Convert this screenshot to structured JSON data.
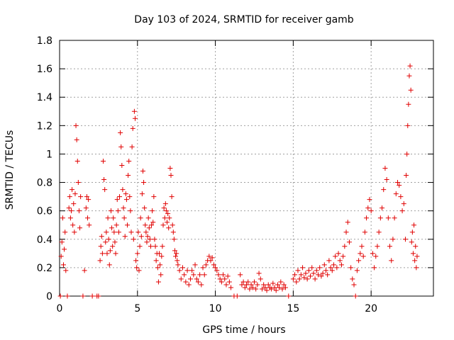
{
  "chart_data": {
    "type": "scatter",
    "title": "Day 103 of 2024, SRMTID for receiver gamb",
    "xlabel": "GPS time / hours",
    "ylabel": "SRMTID / TECUs",
    "xlim": [
      0,
      24
    ],
    "ylim": [
      0,
      1.8
    ],
    "grid": true,
    "marker": "+",
    "marker_color": "#e00000",
    "xticks": [
      0,
      5,
      10,
      15,
      20
    ],
    "yticks": [
      0,
      0.2,
      0.4,
      0.6,
      0.8,
      1.0,
      1.2,
      1.4,
      1.6,
      1.8
    ],
    "xtick_labels": [
      "0",
      "5",
      "10",
      "15",
      "20"
    ],
    "ytick_labels": [
      "0",
      "0.2",
      "0.4",
      "0.6",
      "0.8",
      "1",
      "1.2",
      "1.4",
      "1.6",
      "1.8"
    ],
    "series": [
      {
        "name": "SRMTID",
        "points": [
          [
            0.05,
            0.0
          ],
          [
            0.1,
            0.28
          ],
          [
            0.15,
            0.38
          ],
          [
            0.2,
            0.55
          ],
          [
            0.25,
            0.22
          ],
          [
            0.3,
            0.33
          ],
          [
            0.35,
            0.45
          ],
          [
            0.4,
            0.18
          ],
          [
            0.5,
            0.0
          ],
          [
            0.6,
            0.62
          ],
          [
            0.65,
            0.7
          ],
          [
            0.7,
            0.55
          ],
          [
            0.75,
            0.6
          ],
          [
            0.8,
            0.75
          ],
          [
            0.85,
            0.5
          ],
          [
            0.9,
            0.65
          ],
          [
            0.95,
            0.45
          ],
          [
            1.0,
            0.72
          ],
          [
            1.05,
            1.2
          ],
          [
            1.1,
            1.1
          ],
          [
            1.15,
            0.95
          ],
          [
            1.2,
            0.8
          ],
          [
            1.25,
            0.6
          ],
          [
            1.3,
            0.48
          ],
          [
            1.35,
            0.7
          ],
          [
            1.5,
            0.0
          ],
          [
            1.6,
            0.18
          ],
          [
            1.7,
            0.62
          ],
          [
            1.75,
            0.7
          ],
          [
            1.8,
            0.55
          ],
          [
            1.85,
            0.68
          ],
          [
            1.9,
            0.5
          ],
          [
            2.1,
            0.0
          ],
          [
            2.4,
            0.0
          ],
          [
            2.5,
            0.0
          ],
          [
            2.6,
            0.25
          ],
          [
            2.65,
            0.35
          ],
          [
            2.7,
            0.42
          ],
          [
            2.75,
            0.3
          ],
          [
            2.8,
            0.95
          ],
          [
            2.85,
            0.82
          ],
          [
            2.9,
            0.75
          ],
          [
            2.95,
            0.38
          ],
          [
            3.0,
            0.45
          ],
          [
            3.05,
            0.3
          ],
          [
            3.1,
            0.55
          ],
          [
            3.15,
            0.4
          ],
          [
            3.2,
            0.22
          ],
          [
            3.25,
            0.32
          ],
          [
            3.3,
            0.6
          ],
          [
            3.35,
            0.48
          ],
          [
            3.4,
            0.35
          ],
          [
            3.45,
            0.55
          ],
          [
            3.5,
            0.45
          ],
          [
            3.55,
            0.38
          ],
          [
            3.6,
            0.3
          ],
          [
            3.65,
            0.5
          ],
          [
            3.7,
            0.68
          ],
          [
            3.75,
            0.6
          ],
          [
            3.8,
            0.45
          ],
          [
            3.85,
            0.7
          ],
          [
            3.9,
            1.15
          ],
          [
            3.95,
            1.05
          ],
          [
            4.0,
            0.92
          ],
          [
            4.05,
            0.75
          ],
          [
            4.1,
            0.62
          ],
          [
            4.15,
            0.55
          ],
          [
            4.2,
            0.42
          ],
          [
            4.25,
            0.72
          ],
          [
            4.3,
            0.68
          ],
          [
            4.35,
            0.5
          ],
          [
            4.4,
            0.85
          ],
          [
            4.45,
            0.95
          ],
          [
            4.5,
            0.7
          ],
          [
            4.55,
            0.6
          ],
          [
            4.6,
            0.45
          ],
          [
            4.65,
            1.05
          ],
          [
            4.7,
            1.18
          ],
          [
            4.75,
            0.4
          ],
          [
            4.8,
            1.3
          ],
          [
            4.85,
            1.25
          ],
          [
            4.9,
            0.25
          ],
          [
            4.95,
            0.2
          ],
          [
            5.0,
            0.3
          ],
          [
            5.05,
            0.45
          ],
          [
            5.1,
            0.18
          ],
          [
            5.15,
            0.35
          ],
          [
            5.2,
            0.55
          ],
          [
            5.25,
            0.42
          ],
          [
            5.3,
            0.72
          ],
          [
            5.35,
            0.88
          ],
          [
            5.4,
            0.8
          ],
          [
            5.45,
            0.62
          ],
          [
            5.5,
            0.5
          ],
          [
            5.55,
            0.45
          ],
          [
            5.6,
            0.38
          ],
          [
            5.65,
            0.42
          ],
          [
            5.7,
            0.55
          ],
          [
            5.75,
            0.48
          ],
          [
            5.8,
            0.4
          ],
          [
            5.85,
            0.35
          ],
          [
            5.9,
            0.5
          ],
          [
            5.95,
            0.6
          ],
          [
            6.0,
            0.52
          ],
          [
            6.05,
            0.7
          ],
          [
            6.1,
            0.4
          ],
          [
            6.15,
            0.35
          ],
          [
            6.2,
            0.25
          ],
          [
            6.25,
            0.3
          ],
          [
            6.3,
            0.2
          ],
          [
            6.35,
            0.1
          ],
          [
            6.4,
            0.3
          ],
          [
            6.45,
            0.22
          ],
          [
            6.5,
            0.15
          ],
          [
            6.55,
            0.28
          ],
          [
            6.6,
            0.35
          ],
          [
            6.65,
            0.5
          ],
          [
            6.7,
            0.62
          ],
          [
            6.75,
            0.55
          ],
          [
            6.8,
            0.65
          ],
          [
            6.85,
            0.6
          ],
          [
            6.9,
            0.52
          ],
          [
            6.95,
            0.58
          ],
          [
            7.0,
            0.48
          ],
          [
            7.05,
            0.55
          ],
          [
            7.1,
            0.9
          ],
          [
            7.15,
            0.85
          ],
          [
            7.2,
            0.7
          ],
          [
            7.25,
            0.5
          ],
          [
            7.3,
            0.45
          ],
          [
            7.35,
            0.4
          ],
          [
            7.4,
            0.32
          ],
          [
            7.45,
            0.28
          ],
          [
            7.5,
            0.3
          ],
          [
            7.55,
            0.25
          ],
          [
            7.6,
            0.22
          ],
          [
            7.7,
            0.18
          ],
          [
            7.8,
            0.12
          ],
          [
            7.9,
            0.2
          ],
          [
            8.0,
            0.15
          ],
          [
            8.1,
            0.1
          ],
          [
            8.2,
            0.18
          ],
          [
            8.3,
            0.08
          ],
          [
            8.4,
            0.12
          ],
          [
            8.5,
            0.18
          ],
          [
            8.6,
            0.15
          ],
          [
            8.7,
            0.22
          ],
          [
            8.8,
            0.12
          ],
          [
            8.9,
            0.1
          ],
          [
            9.0,
            0.15
          ],
          [
            9.1,
            0.08
          ],
          [
            9.2,
            0.2
          ],
          [
            9.3,
            0.15
          ],
          [
            9.4,
            0.22
          ],
          [
            9.5,
            0.25
          ],
          [
            9.6,
            0.28
          ],
          [
            9.7,
            0.25
          ],
          [
            9.8,
            0.27
          ],
          [
            9.9,
            0.22
          ],
          [
            10.0,
            0.2
          ],
          [
            10.1,
            0.18
          ],
          [
            10.2,
            0.15
          ],
          [
            10.3,
            0.12
          ],
          [
            10.4,
            0.1
          ],
          [
            10.5,
            0.15
          ],
          [
            10.6,
            0.12
          ],
          [
            10.7,
            0.08
          ],
          [
            10.8,
            0.14
          ],
          [
            10.9,
            0.1
          ],
          [
            11.0,
            0.06
          ],
          [
            11.2,
            0.0
          ],
          [
            11.4,
            0.0
          ],
          [
            11.6,
            0.15
          ],
          [
            11.7,
            0.08
          ],
          [
            11.8,
            0.1
          ],
          [
            11.9,
            0.06
          ],
          [
            12.0,
            0.08
          ],
          [
            12.1,
            0.1
          ],
          [
            12.2,
            0.05
          ],
          [
            12.3,
            0.08
          ],
          [
            12.4,
            0.06
          ],
          [
            12.5,
            0.1
          ],
          [
            12.6,
            0.05
          ],
          [
            12.7,
            0.08
          ],
          [
            12.8,
            0.16
          ],
          [
            12.9,
            0.12
          ],
          [
            13.0,
            0.05
          ],
          [
            13.1,
            0.08
          ],
          [
            13.2,
            0.06
          ],
          [
            13.3,
            0.04
          ],
          [
            13.4,
            0.08
          ],
          [
            13.5,
            0.06
          ],
          [
            13.6,
            0.05
          ],
          [
            13.7,
            0.09
          ],
          [
            13.8,
            0.06
          ],
          [
            13.9,
            0.04
          ],
          [
            14.0,
            0.08
          ],
          [
            14.1,
            0.06
          ],
          [
            14.2,
            0.1
          ],
          [
            14.3,
            0.05
          ],
          [
            14.4,
            0.08
          ],
          [
            14.5,
            0.06
          ],
          [
            14.7,
            0.0
          ],
          [
            15.0,
            0.12
          ],
          [
            15.1,
            0.15
          ],
          [
            15.2,
            0.1
          ],
          [
            15.3,
            0.18
          ],
          [
            15.4,
            0.12
          ],
          [
            15.5,
            0.15
          ],
          [
            15.6,
            0.2
          ],
          [
            15.7,
            0.13
          ],
          [
            15.8,
            0.16
          ],
          [
            15.9,
            0.12
          ],
          [
            16.0,
            0.18
          ],
          [
            16.1,
            0.14
          ],
          [
            16.2,
            0.2
          ],
          [
            16.3,
            0.16
          ],
          [
            16.4,
            0.12
          ],
          [
            16.5,
            0.18
          ],
          [
            16.6,
            0.15
          ],
          [
            16.7,
            0.2
          ],
          [
            16.8,
            0.14
          ],
          [
            16.9,
            0.16
          ],
          [
            17.0,
            0.22
          ],
          [
            17.1,
            0.18
          ],
          [
            17.2,
            0.15
          ],
          [
            17.3,
            0.25
          ],
          [
            17.4,
            0.2
          ],
          [
            17.5,
            0.18
          ],
          [
            17.6,
            0.22
          ],
          [
            17.7,
            0.28
          ],
          [
            17.8,
            0.2
          ],
          [
            17.9,
            0.3
          ],
          [
            18.0,
            0.25
          ],
          [
            18.1,
            0.22
          ],
          [
            18.2,
            0.28
          ],
          [
            18.3,
            0.35
          ],
          [
            18.4,
            0.45
          ],
          [
            18.5,
            0.52
          ],
          [
            18.6,
            0.38
          ],
          [
            18.7,
            0.2
          ],
          [
            18.8,
            0.12
          ],
          [
            18.9,
            0.08
          ],
          [
            19.0,
            0.0
          ],
          [
            19.1,
            0.18
          ],
          [
            19.2,
            0.25
          ],
          [
            19.3,
            0.3
          ],
          [
            19.4,
            0.35
          ],
          [
            19.5,
            0.28
          ],
          [
            19.6,
            0.45
          ],
          [
            19.7,
            0.55
          ],
          [
            19.8,
            0.62
          ],
          [
            19.9,
            0.68
          ],
          [
            20.0,
            0.6
          ],
          [
            20.1,
            0.3
          ],
          [
            20.2,
            0.2
          ],
          [
            20.3,
            0.28
          ],
          [
            20.4,
            0.35
          ],
          [
            20.5,
            0.45
          ],
          [
            20.6,
            0.55
          ],
          [
            20.7,
            0.62
          ],
          [
            20.8,
            0.75
          ],
          [
            20.9,
            0.9
          ],
          [
            21.0,
            0.82
          ],
          [
            21.1,
            0.55
          ],
          [
            21.2,
            0.35
          ],
          [
            21.3,
            0.25
          ],
          [
            21.4,
            0.4
          ],
          [
            21.5,
            0.55
          ],
          [
            21.6,
            0.72
          ],
          [
            21.7,
            0.8
          ],
          [
            21.8,
            0.78
          ],
          [
            21.9,
            0.7
          ],
          [
            22.0,
            0.6
          ],
          [
            22.1,
            0.65
          ],
          [
            22.2,
            0.4
          ],
          [
            22.25,
            0.85
          ],
          [
            22.3,
            1.0
          ],
          [
            22.35,
            1.2
          ],
          [
            22.4,
            1.35
          ],
          [
            22.45,
            1.55
          ],
          [
            22.5,
            1.62
          ],
          [
            22.55,
            1.45
          ],
          [
            22.6,
            0.38
          ],
          [
            22.65,
            0.45
          ],
          [
            22.7,
            0.3
          ],
          [
            22.75,
            0.5
          ],
          [
            22.8,
            0.25
          ],
          [
            22.85,
            0.35
          ],
          [
            22.9,
            0.2
          ],
          [
            22.95,
            0.28
          ]
        ]
      }
    ]
  }
}
